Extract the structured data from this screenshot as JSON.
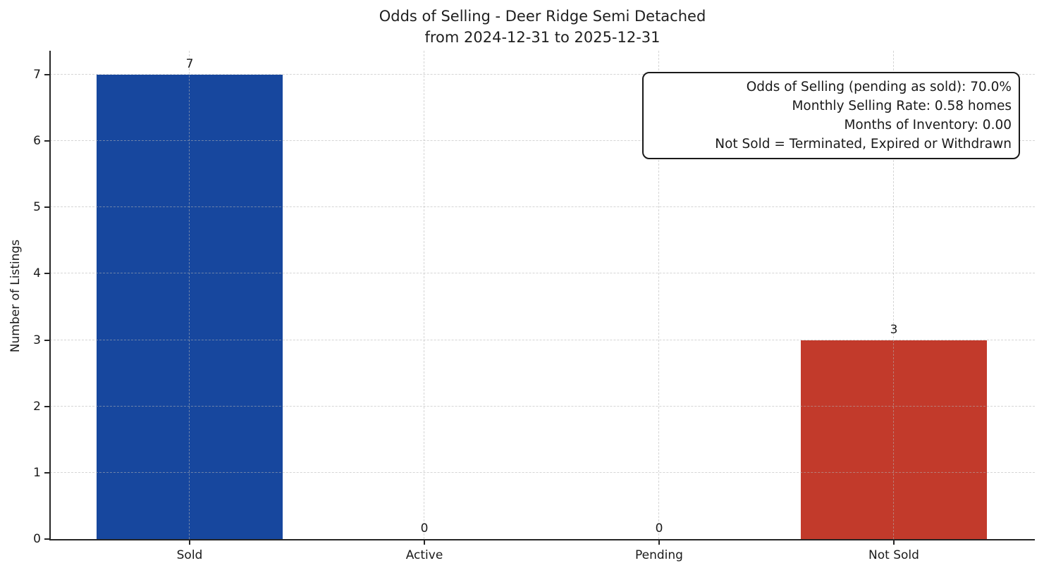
{
  "chart_data": {
    "type": "bar",
    "title_line1": "Odds of Selling - Deer Ridge Semi Detached",
    "title_line2": "from 2024-12-31 to 2025-12-31",
    "ylabel": "Number of Listings",
    "categories": [
      "Sold",
      "Active",
      "Pending",
      "Not Sold"
    ],
    "values": [
      7,
      0,
      0,
      3
    ],
    "bar_colors": [
      "#17479e",
      null,
      null,
      "#c23a2b"
    ],
    "value_labels": [
      "7",
      "0",
      "0",
      "3"
    ],
    "yticks": [
      0,
      1,
      2,
      3,
      4,
      5,
      6,
      7
    ],
    "ylim": [
      0,
      7.36
    ],
    "grid": true,
    "grid_style": "dashed",
    "legend": "none"
  },
  "annotation_box": {
    "lines": [
      "Odds of Selling (pending as sold): 70.0%",
      "Monthly Selling Rate: 0.58 homes",
      "Months of Inventory: 0.00",
      "Not Sold = Terminated, Expired or Withdrawn"
    ]
  },
  "colors": {
    "sold_bar": "#17479e",
    "not_sold_bar": "#c23a2b",
    "axis": "#262626",
    "grid": "#cfcfcf",
    "text": "#1a1a1a",
    "background": "#ffffff"
  }
}
